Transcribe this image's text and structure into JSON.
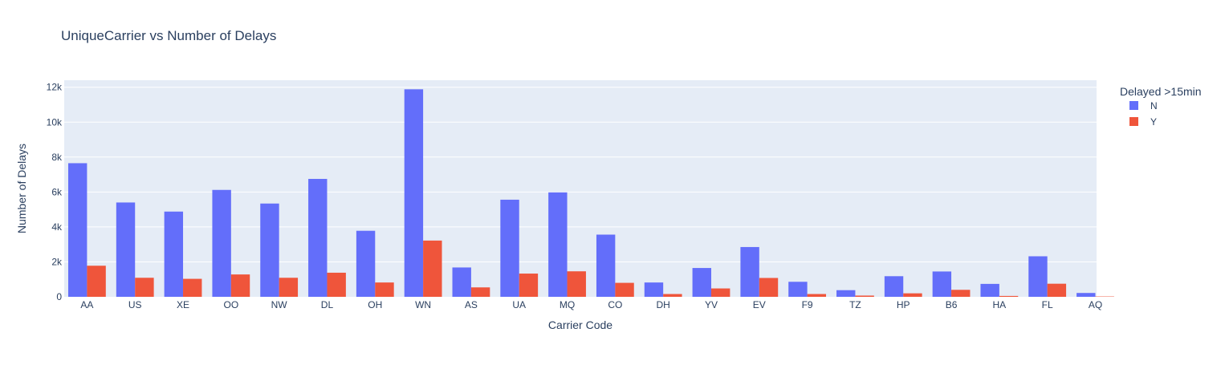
{
  "chart_data": {
    "type": "bar",
    "title": "UniqueCarrier vs Number of Delays",
    "xlabel": "Carrier Code",
    "ylabel": "Number of Delays",
    "ylim": [
      0,
      12400
    ],
    "yticks": [
      0,
      2000,
      4000,
      6000,
      8000,
      10000,
      12000
    ],
    "ytick_labels": [
      "0",
      "2k",
      "4k",
      "6k",
      "8k",
      "10k",
      "12k"
    ],
    "grid": true,
    "legend": {
      "title": "Delayed >15min",
      "placement": "top-right"
    },
    "categories": [
      "AA",
      "US",
      "XE",
      "OO",
      "NW",
      "DL",
      "OH",
      "WN",
      "AS",
      "UA",
      "MQ",
      "CO",
      "DH",
      "YV",
      "EV",
      "F9",
      "TZ",
      "HP",
      "B6",
      "HA",
      "FL",
      "AQ"
    ],
    "series": [
      {
        "name": "N",
        "color": "#636efa",
        "values": [
          7650,
          5400,
          4880,
          6120,
          5340,
          6750,
          3780,
          11880,
          1680,
          5560,
          5980,
          3560,
          820,
          1650,
          2850,
          860,
          380,
          1180,
          1450,
          740,
          2320,
          220
        ]
      },
      {
        "name": "Y",
        "color": "#ef553b",
        "values": [
          1780,
          1090,
          1030,
          1280,
          1090,
          1380,
          820,
          3220,
          540,
          1330,
          1460,
          800,
          160,
          480,
          1080,
          160,
          70,
          200,
          400,
          50,
          750,
          20
        ]
      }
    ],
    "plot_background": "#e5ecf6"
  }
}
